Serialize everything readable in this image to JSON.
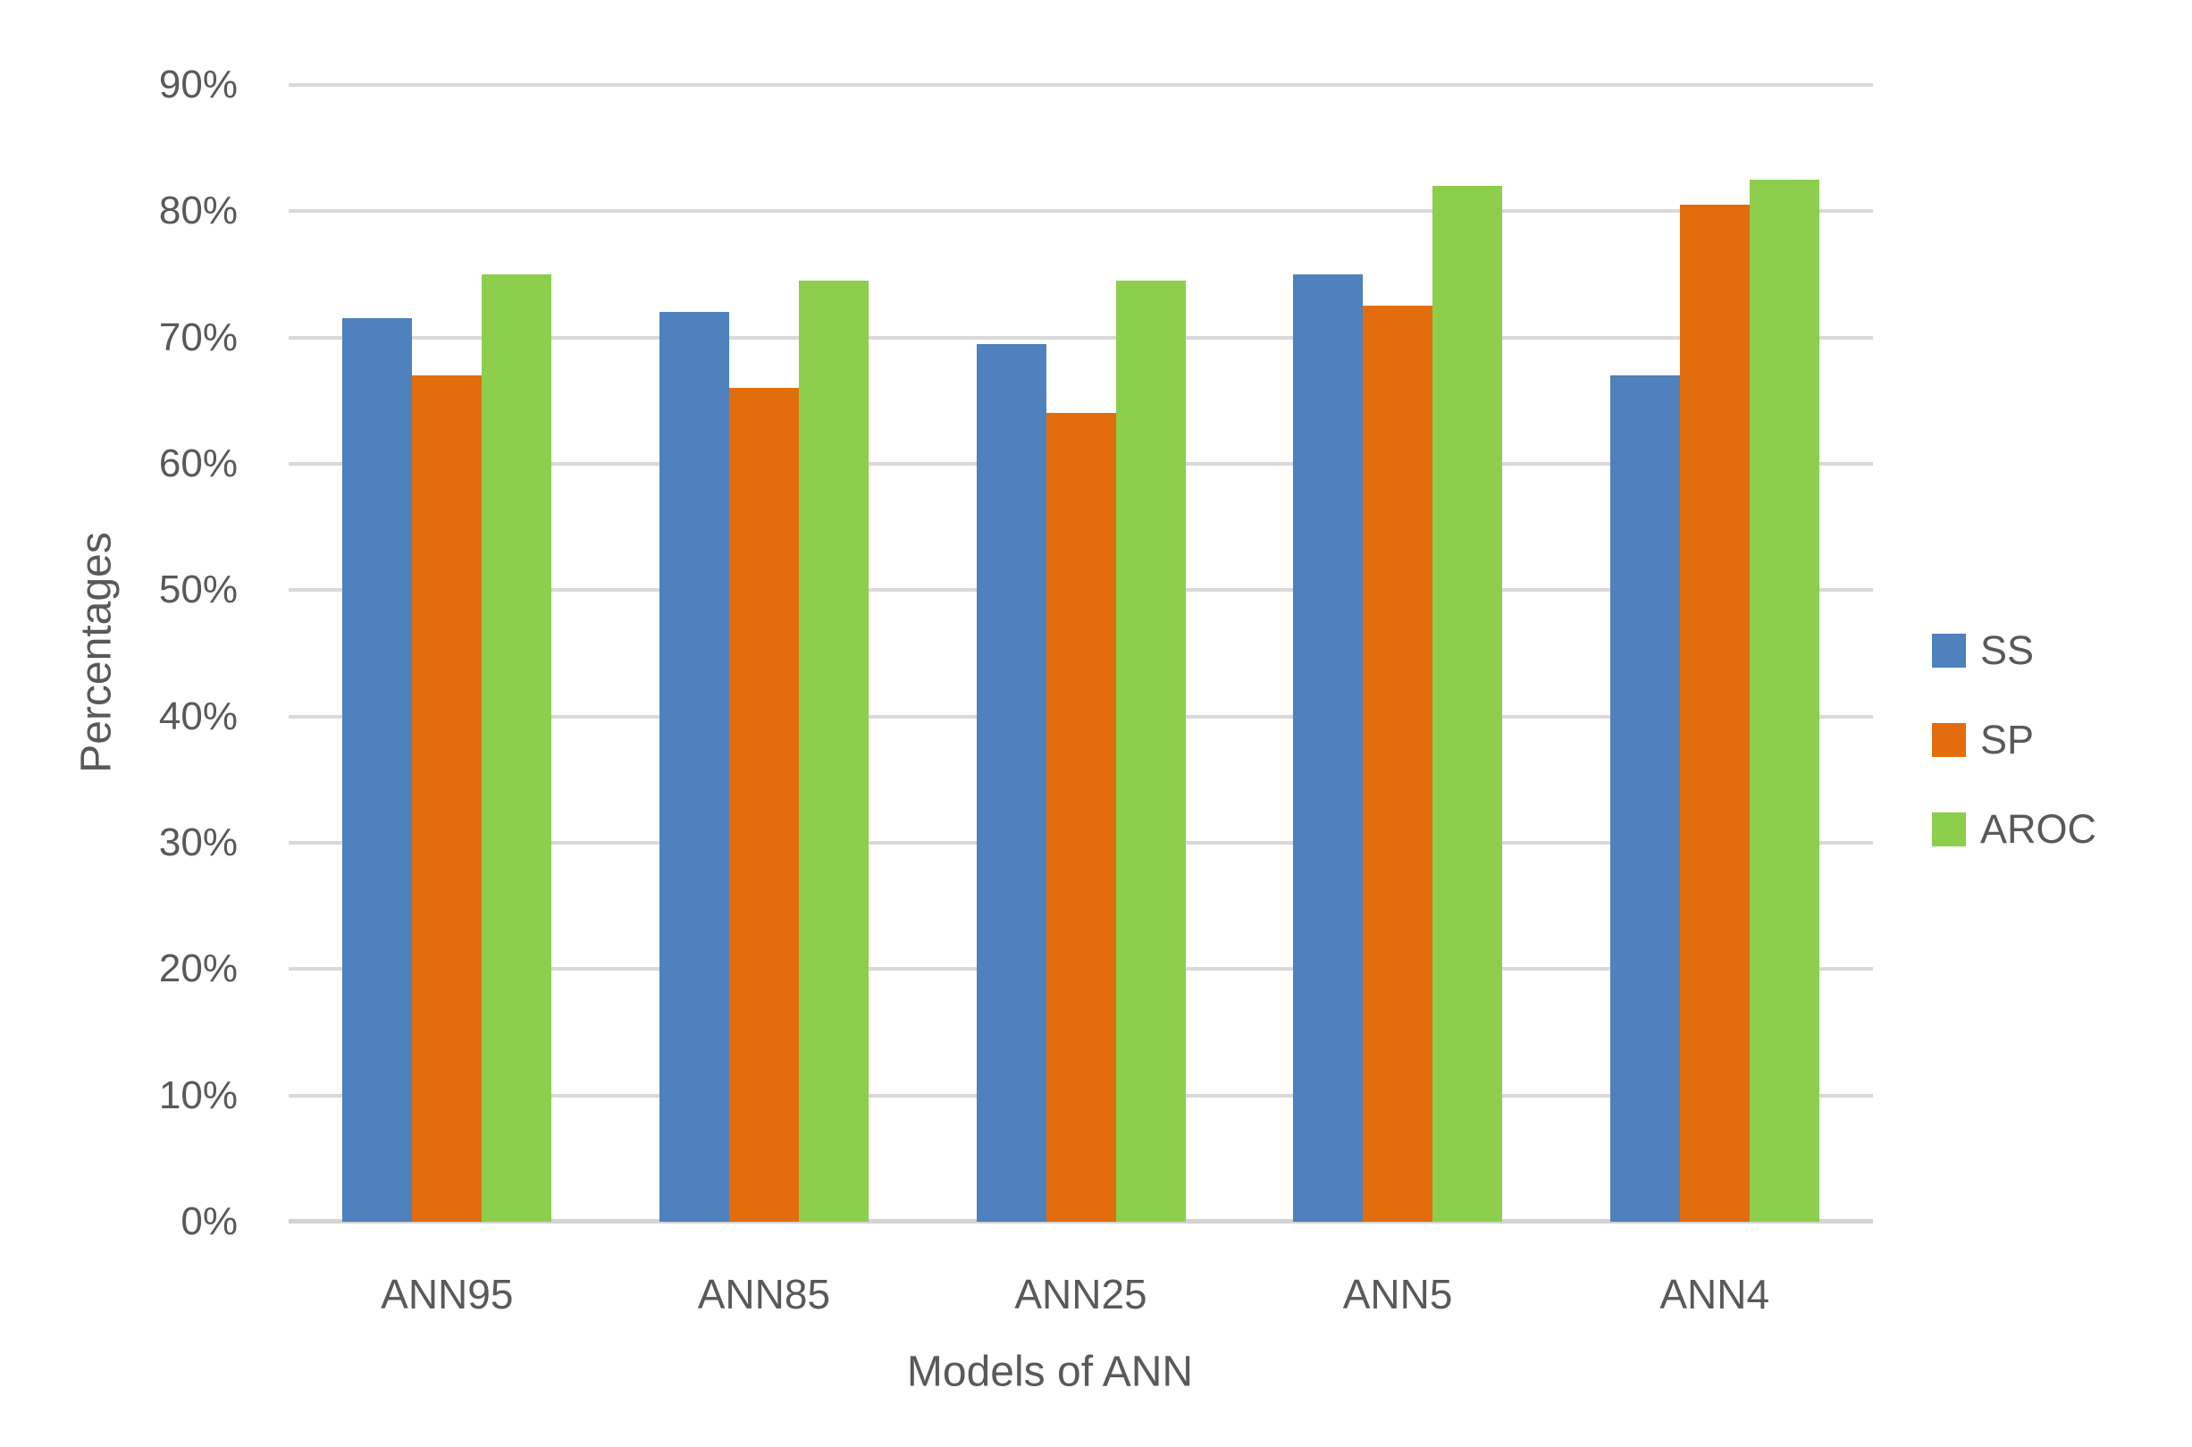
{
  "chart_data": {
    "type": "bar",
    "title": "",
    "categories": [
      "ANN95",
      "ANN85",
      "ANN25",
      "ANN5",
      "ANN4"
    ],
    "series": [
      {
        "name": "SS",
        "color": "#4E81BD",
        "values": [
          71.5,
          72.0,
          69.5,
          75.0,
          67.0
        ]
      },
      {
        "name": "SP",
        "color": "#E36D0D",
        "values": [
          67.0,
          66.0,
          64.0,
          72.5,
          80.5
        ]
      },
      {
        "name": "AROC",
        "color": "#8DCE4D",
        "values": [
          75.0,
          74.5,
          74.5,
          82.0,
          82.5
        ]
      }
    ],
    "xlabel": "Models of ANN",
    "ylabel": "Percentages",
    "ylim": [
      0,
      90
    ],
    "ytick_step": 10,
    "ytick_labels": [
      "0%",
      "10%",
      "20%",
      "30%",
      "40%",
      "50%",
      "60%",
      "70%",
      "80%",
      "90%"
    ],
    "grid": true,
    "legend_position": "right-middle",
    "legend_entries": [
      "SS",
      "SP",
      "AROC"
    ]
  },
  "styles": {
    "text_color": "#595959",
    "gridline_color": "#D9D9D9",
    "background": "#FFFFFF"
  }
}
